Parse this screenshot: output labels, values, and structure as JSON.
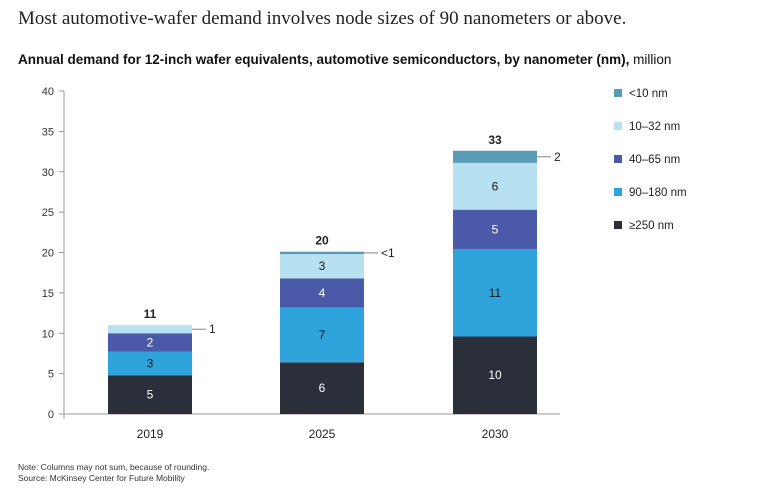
{
  "headline": "Most automotive-wafer demand involves node sizes of 90 nanometers or above.",
  "chart_data": {
    "type": "bar",
    "stacked": true,
    "title": "Annual demand for 12-inch wafer equivalents, automotive semiconductors, by nanometer (nm),",
    "title_unit": "million",
    "categories": [
      "2019",
      "2025",
      "2030"
    ],
    "ylim": [
      0,
      40
    ],
    "yticks": [
      "0",
      "5",
      "10",
      "15",
      "20",
      "25",
      "30",
      "35",
      "40"
    ],
    "grid": false,
    "legend_position": "right",
    "series": [
      {
        "name": "≥250 nm",
        "color": "#2b2f3a",
        "label_color": "#ffffff",
        "values": [
          4.8,
          6.4,
          9.6
        ],
        "labels": [
          "5",
          "6",
          "10"
        ]
      },
      {
        "name": "90–180 nm",
        "color": "#2ea3dc",
        "label_color": "#1a1a1a",
        "values": [
          2.9,
          6.8,
          10.8
        ],
        "labels": [
          "3",
          "7",
          "11"
        ]
      },
      {
        "name": "40–65 nm",
        "color": "#4a5aa8",
        "label_color": "#ffffff",
        "values": [
          2.3,
          3.6,
          4.9
        ],
        "labels": [
          "2",
          "4",
          "5"
        ]
      },
      {
        "name": "10–32 nm",
        "color": "#b7e0f0",
        "label_color": "#1a1a1a",
        "values": [
          1.0,
          3.0,
          5.8
        ],
        "labels": [
          "",
          "3",
          "6"
        ]
      },
      {
        "name": "<10 nm",
        "color": "#5a9bb5",
        "label_color": "#1a1a1a",
        "values": [
          0,
          0.3,
          1.5
        ],
        "labels": [
          "",
          "",
          ""
        ]
      }
    ],
    "totals": [
      "11",
      "20",
      "33"
    ],
    "callouts": [
      "1",
      "<1",
      "2"
    ],
    "legend_order": [
      "<10 nm",
      "10–32 nm",
      "40–65 nm",
      "90–180 nm",
      "≥250 nm"
    ]
  },
  "footnote": {
    "note": "Note: Columns may not sum, because of rounding.",
    "source": "Source: McKinsey Center for Future Mobility"
  }
}
